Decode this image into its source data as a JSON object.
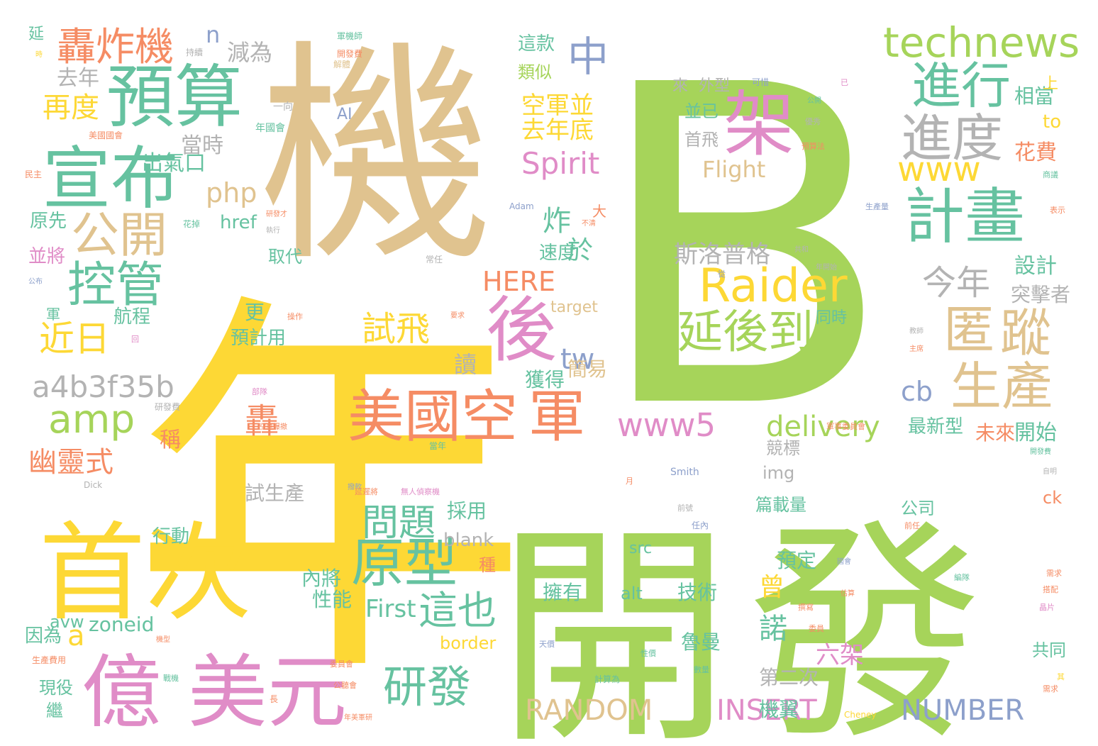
{
  "palette": {
    "green": "#a6d45a",
    "gold": "#e0c38f",
    "yellow": "#fdd835",
    "teal": "#66c2a0",
    "pink": "#e08cc7",
    "orange": "#f58c64",
    "grey": "#b3b3b3",
    "blue": "#8da0cb"
  },
  "words": [
    {
      "text": "B",
      "color": "green"
    },
    {
      "text": "年",
      "color": "yellow"
    },
    {
      "text": "機",
      "color": "gold"
    },
    {
      "text": "開",
      "color": "green"
    },
    {
      "text": "發",
      "color": "green"
    },
    {
      "text": "首次",
      "color": "yellow"
    },
    {
      "text": "億",
      "color": "pink"
    },
    {
      "text": "美元",
      "color": "pink"
    },
    {
      "text": "宣布",
      "color": "teal"
    },
    {
      "text": "預算",
      "color": "teal"
    },
    {
      "text": "架",
      "color": "pink"
    },
    {
      "text": "後",
      "color": "pink"
    },
    {
      "text": "美國空",
      "color": "orange"
    },
    {
      "text": "軍",
      "color": "orange"
    },
    {
      "text": "計畫",
      "color": "teal"
    },
    {
      "text": "進行",
      "color": "teal"
    },
    {
      "text": "進度",
      "color": "grey"
    },
    {
      "text": "technews",
      "color": "green"
    },
    {
      "text": "Raider",
      "color": "yellow"
    },
    {
      "text": "延後到",
      "color": "green"
    },
    {
      "text": "匿",
      "color": "gold"
    },
    {
      "text": "蹤",
      "color": "gold"
    },
    {
      "text": "生產",
      "color": "gold"
    },
    {
      "text": "原型",
      "color": "teal"
    },
    {
      "text": "研發",
      "color": "teal"
    },
    {
      "text": "公開",
      "color": "gold"
    },
    {
      "text": "控管",
      "color": "teal"
    },
    {
      "text": "轟炸機",
      "color": "orange"
    },
    {
      "text": "amp",
      "color": "green"
    },
    {
      "text": "a4b3f35b",
      "color": "grey"
    },
    {
      "text": "中",
      "color": "blue"
    },
    {
      "text": "www",
      "color": "yellow"
    },
    {
      "text": "www5",
      "color": "pink"
    },
    {
      "text": "RANDOM",
      "color": "gold"
    },
    {
      "text": "INSERT",
      "color": "pink"
    },
    {
      "text": "NUMBER",
      "color": "blue"
    },
    {
      "text": "delivery",
      "color": "green"
    },
    {
      "text": "問題",
      "color": "teal"
    },
    {
      "text": "試飛",
      "color": "yellow"
    },
    {
      "text": "這也",
      "color": "teal"
    },
    {
      "text": "近日",
      "color": "yellow"
    },
    {
      "text": "再度",
      "color": "yellow"
    },
    {
      "text": "幽靈式",
      "color": "orange"
    },
    {
      "text": "Spirit",
      "color": "pink"
    },
    {
      "text": "今年",
      "color": "grey"
    },
    {
      "text": "斯洛普格",
      "color": "grey"
    },
    {
      "text": "php",
      "color": "gold"
    },
    {
      "text": "HERE",
      "color": "orange"
    },
    {
      "text": "Flight",
      "color": "gold"
    },
    {
      "text": "tw",
      "color": "blue"
    },
    {
      "text": "cb",
      "color": "blue"
    },
    {
      "text": "a",
      "color": "yellow"
    },
    {
      "text": "n",
      "color": "blue"
    },
    {
      "text": "轟",
      "color": "orange"
    },
    {
      "text": "炸",
      "color": "teal"
    },
    {
      "text": "於",
      "color": "teal"
    },
    {
      "text": "去年底",
      "color": "yellow"
    },
    {
      "text": "空軍並",
      "color": "yellow"
    },
    {
      "text": "減為",
      "color": "grey"
    },
    {
      "text": "去年",
      "color": "grey"
    },
    {
      "text": "當時",
      "color": "grey"
    },
    {
      "text": "出氣口",
      "color": "teal"
    },
    {
      "text": "設計",
      "color": "teal"
    },
    {
      "text": "突擊者",
      "color": "grey"
    },
    {
      "text": "花費",
      "color": "orange"
    },
    {
      "text": "相當",
      "color": "teal"
    },
    {
      "text": "開始",
      "color": "teal"
    },
    {
      "text": "未來",
      "color": "orange"
    },
    {
      "text": "最新型",
      "color": "teal"
    },
    {
      "text": "六架",
      "color": "pink"
    },
    {
      "text": "諾",
      "color": "teal"
    },
    {
      "text": "魯曼",
      "color": "teal"
    },
    {
      "text": "曾",
      "color": "yellow"
    },
    {
      "text": "First",
      "color": "teal"
    },
    {
      "text": "zoneid",
      "color": "teal"
    },
    {
      "text": "border",
      "color": "yellow"
    },
    {
      "text": "技術",
      "color": "teal"
    },
    {
      "text": "擁有",
      "color": "teal"
    },
    {
      "text": "預定",
      "color": "teal"
    },
    {
      "text": "第二次",
      "color": "grey"
    },
    {
      "text": "機翼",
      "color": "teal"
    },
    {
      "text": "簡易",
      "color": "gold"
    },
    {
      "text": "獲得",
      "color": "teal"
    },
    {
      "text": "讀",
      "color": "grey"
    },
    {
      "text": "採用",
      "color": "teal"
    },
    {
      "text": "blank",
      "color": "grey"
    },
    {
      "text": "性能",
      "color": "teal"
    },
    {
      "text": "內將",
      "color": "teal"
    },
    {
      "text": "行動",
      "color": "teal"
    },
    {
      "text": "試生產",
      "color": "grey"
    },
    {
      "text": "稱",
      "color": "orange"
    },
    {
      "text": "航程",
      "color": "teal"
    },
    {
      "text": "更",
      "color": "teal"
    },
    {
      "text": "預計用",
      "color": "teal"
    },
    {
      "text": "取代",
      "color": "teal"
    },
    {
      "text": "href",
      "color": "teal"
    },
    {
      "text": "原先",
      "color": "teal"
    },
    {
      "text": "並將",
      "color": "pink"
    },
    {
      "text": "因為",
      "color": "teal"
    },
    {
      "text": "現役",
      "color": "teal"
    },
    {
      "text": "繼",
      "color": "teal"
    },
    {
      "text": "avw",
      "color": "teal"
    },
    {
      "text": "速度",
      "color": "teal"
    },
    {
      "text": "target",
      "color": "gold"
    },
    {
      "text": "這款",
      "color": "teal"
    },
    {
      "text": "類似",
      "color": "green"
    },
    {
      "text": "來",
      "color": "grey"
    },
    {
      "text": "外型",
      "color": "grey"
    },
    {
      "text": "並已",
      "color": "teal"
    },
    {
      "text": "首飛",
      "color": "grey"
    },
    {
      "text": "to",
      "color": "yellow"
    },
    {
      "text": "上",
      "color": "yellow"
    },
    {
      "text": "src",
      "color": "teal"
    },
    {
      "text": "alt",
      "color": "teal"
    },
    {
      "text": "img",
      "color": "grey"
    },
    {
      "text": "ck",
      "color": "orange"
    },
    {
      "text": "公司",
      "color": "teal"
    },
    {
      "text": "共同",
      "color": "teal"
    },
    {
      "text": "同時",
      "color": "teal"
    },
    {
      "text": "篇載量",
      "color": "teal"
    },
    {
      "text": "競標",
      "color": "grey"
    },
    {
      "text": "種",
      "color": "orange"
    },
    {
      "text": "大",
      "color": "orange"
    },
    {
      "text": "AI",
      "color": "blue"
    },
    {
      "text": "軍",
      "color": "teal"
    },
    {
      "text": "延",
      "color": "teal"
    },
    {
      "text": "一向",
      "color": "grey"
    },
    {
      "text": "年國會",
      "color": "teal"
    },
    {
      "text": "美國國會",
      "color": "orange"
    },
    {
      "text": "開發費",
      "color": "orange"
    },
    {
      "text": "民主",
      "color": "orange"
    },
    {
      "text": "時",
      "color": "yellow"
    },
    {
      "text": "持續",
      "color": "grey"
    },
    {
      "text": "解體",
      "color": "gold"
    },
    {
      "text": "軍機師",
      "color": "teal"
    },
    {
      "text": "可惜",
      "color": "blue"
    },
    {
      "text": "已",
      "color": "pink"
    },
    {
      "text": "優秀",
      "color": "grey"
    },
    {
      "text": "預算法",
      "color": "orange"
    },
    {
      "text": "Adam",
      "color": "blue"
    },
    {
      "text": "花掉",
      "color": "teal"
    },
    {
      "text": "常任",
      "color": "grey"
    },
    {
      "text": "Smith",
      "color": "blue"
    },
    {
      "text": "Cheney",
      "color": "yellow"
    },
    {
      "text": "Dick",
      "color": "grey"
    },
    {
      "text": "公布",
      "color": "blue"
    },
    {
      "text": "研發費",
      "color": "grey"
    },
    {
      "text": "生產費用",
      "color": "orange"
    },
    {
      "text": "計算為",
      "color": "teal"
    },
    {
      "text": "長",
      "color": "orange"
    },
    {
      "text": "前任",
      "color": "orange"
    },
    {
      "text": "任內",
      "color": "blue"
    },
    {
      "text": "國會",
      "color": "blue"
    },
    {
      "text": "撥款",
      "color": "blue"
    },
    {
      "text": "表示",
      "color": "orange"
    },
    {
      "text": "商議",
      "color": "teal"
    },
    {
      "text": "生產量",
      "color": "blue"
    },
    {
      "text": "共和",
      "color": "grey"
    },
    {
      "text": "年開始",
      "color": "grey"
    },
    {
      "text": "主席",
      "color": "orange"
    },
    {
      "text": "教師",
      "color": "grey"
    },
    {
      "text": "軍事委員會",
      "color": "orange"
    },
    {
      "text": "空軍爆撤",
      "color": "orange"
    },
    {
      "text": "當年",
      "color": "teal"
    },
    {
      "text": "開發費",
      "color": "teal"
    },
    {
      "text": "自明",
      "color": "grey"
    },
    {
      "text": "無人偵察機",
      "color": "pink"
    },
    {
      "text": "延遲將",
      "color": "orange"
    },
    {
      "text": "月",
      "color": "orange"
    },
    {
      "text": "前號",
      "color": "grey"
    },
    {
      "text": "需求",
      "color": "orange"
    },
    {
      "text": "搭配",
      "color": "orange"
    },
    {
      "text": "編隊",
      "color": "teal"
    },
    {
      "text": "撰寫",
      "color": "orange"
    },
    {
      "text": "委員",
      "color": "orange"
    },
    {
      "text": "其",
      "color": "yellow"
    },
    {
      "text": "天價",
      "color": "blue"
    },
    {
      "text": "性價",
      "color": "teal"
    },
    {
      "text": "數量",
      "color": "teal"
    },
    {
      "text": "年美軍研",
      "color": "orange"
    },
    {
      "text": "公聽會",
      "color": "orange"
    },
    {
      "text": "晶片",
      "color": "pink"
    },
    {
      "text": "需求",
      "color": "orange"
    },
    {
      "text": "不清",
      "color": "orange"
    },
    {
      "text": "戰機",
      "color": "teal"
    },
    {
      "text": "委員會",
      "color": "orange"
    },
    {
      "text": "公開",
      "color": "teal"
    },
    {
      "text": "回",
      "color": "pink"
    },
    {
      "text": "機型",
      "color": "orange"
    },
    {
      "text": "操作",
      "color": "orange"
    },
    {
      "text": "要求",
      "color": "orange"
    },
    {
      "text": "估算",
      "color": "orange"
    },
    {
      "text": "部隊",
      "color": "pink"
    },
    {
      "text": "從",
      "color": "blue"
    },
    {
      "text": "研發才",
      "color": "orange"
    },
    {
      "text": "執行",
      "color": "grey"
    }
  ]
}
